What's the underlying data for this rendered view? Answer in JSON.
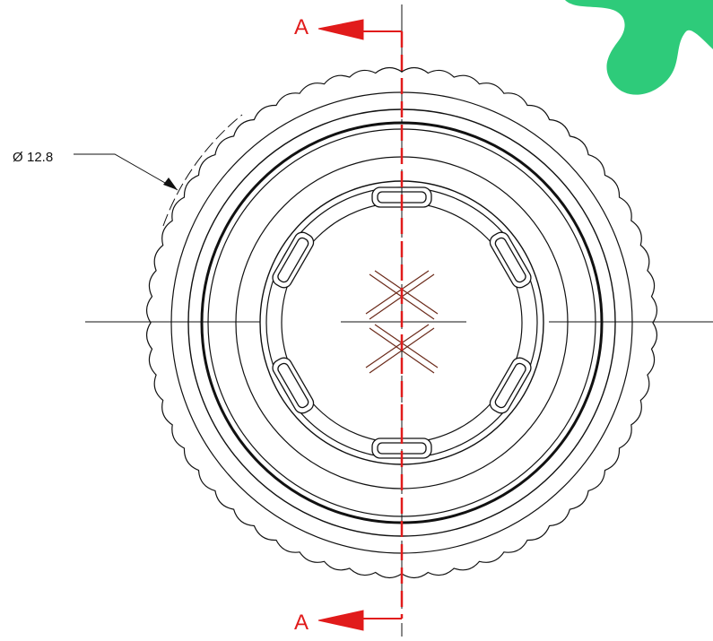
{
  "drawing": {
    "section_marker_top": {
      "letter": "A"
    },
    "section_marker_bottom": {
      "letter": "A"
    },
    "diameter_dimension": {
      "symbol": "Ø",
      "value": "12.8"
    }
  },
  "colors": {
    "section_line": "#e11b1b",
    "outline": "#111111",
    "center_mark": "#6b2a1a",
    "logo_green": "#2ecb7a"
  },
  "icons": {
    "logo": "green-blob-logo"
  }
}
